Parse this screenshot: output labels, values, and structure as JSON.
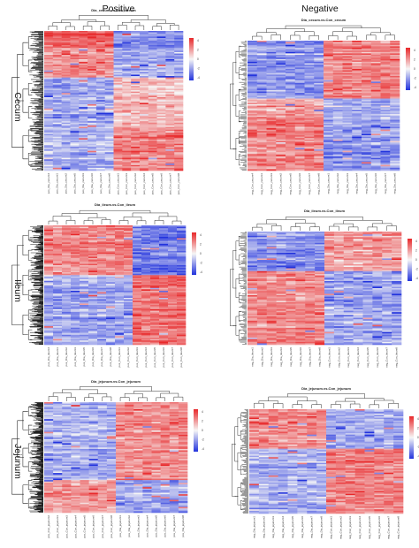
{
  "headers": {
    "columns": [
      "Positive",
      "Negative"
    ],
    "rows": [
      "Cecum",
      "Ileum",
      "Jejunum"
    ]
  },
  "colors": {
    "low": "#2233dd",
    "mid": "#f6f6f6",
    "high": "#e8282a",
    "tree": "#222222"
  },
  "chart_data": [
    {
      "type": "heatmap",
      "panel": "cecum-positive",
      "title": "Dia_cecum.vs.Con_cecum",
      "color_scale_ticks": [
        "4",
        "2",
        "0",
        "-2",
        "-4"
      ],
      "columns": [
        "pos_Dia_cecum4",
        "pos_Dia_cecum1",
        "pos_Dia_cecum2",
        "pos_Dia_cecum5",
        "pos_Dia_cecum3",
        "pos_Dia_cecum6",
        "pos_Dia_cecum7",
        "pos_Dia_cecum8",
        "pos_Con_cecum1",
        "pos_Con_cecum3",
        "pos_Con_cecum2",
        "pos_Con_cecum4",
        "pos_Con_cecum5",
        "pos_Con_cecum6",
        "pos_Con_cecum7",
        "pos_Con_cecum8"
      ],
      "row_clusters": 220,
      "blocks": [
        {
          "rows": [
            0.0,
            0.12
          ],
          "cols": [
            0,
            7
          ],
          "value": 1.6
        },
        {
          "rows": [
            0.0,
            0.12
          ],
          "cols": [
            8,
            15
          ],
          "value": -1.2
        },
        {
          "rows": [
            0.12,
            0.33
          ],
          "cols": [
            0,
            7
          ],
          "value": 1.1
        },
        {
          "rows": [
            0.12,
            0.33
          ],
          "cols": [
            8,
            15
          ],
          "value": -0.8
        },
        {
          "rows": [
            0.33,
            0.7
          ],
          "cols": [
            0,
            7
          ],
          "value": -0.9
        },
        {
          "rows": [
            0.33,
            0.7
          ],
          "cols": [
            8,
            15
          ],
          "value": 0.6
        },
        {
          "rows": [
            0.7,
            1.0
          ],
          "cols": [
            0,
            7
          ],
          "value": -0.7
        },
        {
          "rows": [
            0.7,
            1.0
          ],
          "cols": [
            8,
            15
          ],
          "value": 1.3
        }
      ]
    },
    {
      "type": "heatmap",
      "panel": "cecum-negative",
      "title": "Dia_cecum.vs.Con_cecum",
      "color_scale_ticks": [
        "4",
        "2",
        "0",
        "-2",
        "-4"
      ],
      "columns": [
        "neg_Con_cecum4",
        "neg_Con_cecum1",
        "neg_Con_cecum3",
        "neg_Con_cecum2",
        "neg_Con_cecum5",
        "neg_Con_cecum6",
        "neg_Con_cecum7",
        "neg_Con_cecum8",
        "neg_Dia_cecum1",
        "neg_Dia_cecum2",
        "neg_Dia_cecum3",
        "neg_Dia_cecum4",
        "neg_Dia_cecum5",
        "neg_Dia_cecum6",
        "neg_Dia_cecum7",
        "neg_Dia_cecum8"
      ],
      "row_clusters": 120,
      "blocks": [
        {
          "rows": [
            0.0,
            0.45
          ],
          "cols": [
            0,
            7
          ],
          "value": -1.1
        },
        {
          "rows": [
            0.0,
            0.45
          ],
          "cols": [
            8,
            15
          ],
          "value": 1.2
        },
        {
          "rows": [
            0.45,
            0.6
          ],
          "cols": [
            0,
            7
          ],
          "value": 0.9
        },
        {
          "rows": [
            0.45,
            0.6
          ],
          "cols": [
            8,
            15
          ],
          "value": -0.8
        },
        {
          "rows": [
            0.6,
            1.0
          ],
          "cols": [
            0,
            7
          ],
          "value": 1.3
        },
        {
          "rows": [
            0.6,
            1.0
          ],
          "cols": [
            8,
            15
          ],
          "value": -1.0
        }
      ]
    },
    {
      "type": "heatmap",
      "panel": "ileum-positive",
      "title": "Dia_ileum.vs.Con_ileum",
      "color_scale_ticks": [
        "4",
        "2",
        "0",
        "-2",
        "-4"
      ],
      "columns": [
        "pos_Dia_ileum4",
        "pos_Dia_ileum1",
        "pos_Dia_ileum2",
        "pos_Dia_ileum3",
        "pos_Dia_ileum5",
        "pos_Dia_ileum6",
        "pos_Dia_ileum7",
        "pos_Dia_ileum8",
        "pos_Con_ileum1",
        "pos_Con_ileum2",
        "pos_Con_ileum3",
        "pos_Con_ileum4",
        "pos_Con_ileum5",
        "pos_Con_ileum6",
        "pos_Con_ileum7",
        "pos_Con_ileum8"
      ],
      "row_clusters": 220,
      "blocks": [
        {
          "rows": [
            0.0,
            0.42
          ],
          "cols": [
            0,
            9
          ],
          "value": 1.2
        },
        {
          "rows": [
            0.0,
            0.42
          ],
          "cols": [
            10,
            15
          ],
          "value": -1.4
        },
        {
          "rows": [
            0.42,
            1.0
          ],
          "cols": [
            0,
            9
          ],
          "value": -0.9
        },
        {
          "rows": [
            0.42,
            1.0
          ],
          "cols": [
            10,
            15
          ],
          "value": 1.4
        }
      ]
    },
    {
      "type": "heatmap",
      "panel": "ileum-negative",
      "title": "Dia_ileum.vs.Con_ileum",
      "color_scale_ticks": [
        "4",
        "2",
        "0",
        "-2",
        "-4"
      ],
      "columns": [
        "neg_Dia_ileum1",
        "neg_Dia_ileum2",
        "neg_Dia_ileum3",
        "neg_Dia_ileum4",
        "neg_Dia_ileum5",
        "neg_Dia_ileum6",
        "neg_Dia_ileum7",
        "neg_Dia_ileum8",
        "neg_Con_ileum1",
        "neg_Con_ileum2",
        "neg_Con_ileum3",
        "neg_Con_ileum4",
        "neg_Con_ileum5",
        "neg_Con_ileum6",
        "neg_Con_ileum7",
        "neg_Con_ileum8"
      ],
      "row_clusters": 110,
      "blocks": [
        {
          "rows": [
            0.0,
            0.35
          ],
          "cols": [
            0,
            7
          ],
          "value": -1.1
        },
        {
          "rows": [
            0.0,
            0.35
          ],
          "cols": [
            8,
            15
          ],
          "value": 1.0
        },
        {
          "rows": [
            0.35,
            1.0
          ],
          "cols": [
            0,
            7
          ],
          "value": 1.2
        },
        {
          "rows": [
            0.35,
            1.0
          ],
          "cols": [
            8,
            15
          ],
          "value": -0.9
        }
      ]
    },
    {
      "type": "heatmap",
      "panel": "jejunum-positive",
      "title": "Dia_jejunum.vs.Con_jejunum",
      "color_scale_ticks": [
        "4",
        "2",
        "0",
        "-2",
        "-4"
      ],
      "columns": [
        "pos_Con_jejunum2",
        "pos_Con_jejunum1",
        "pos_Con_jejunum3",
        "pos_Con_jejunum4",
        "pos_Con_jejunum5",
        "pos_Con_jejunum6",
        "pos_Con_jejunum7",
        "pos_Con_jejunum8",
        "pos_Dia_jejunum1",
        "pos_Dia_jejunum2",
        "pos_Dia_jejunum3",
        "pos_Dia_jejunum4",
        "pos_Dia_jejunum5",
        "pos_Dia_jejunum6",
        "pos_Dia_jejunum7",
        "pos_Dia_jejunum8"
      ],
      "row_clusters": 220,
      "blocks": [
        {
          "rows": [
            0.0,
            0.7
          ],
          "cols": [
            0,
            7
          ],
          "value": -0.8
        },
        {
          "rows": [
            0.0,
            0.7
          ],
          "cols": [
            8,
            15
          ],
          "value": 1.1
        },
        {
          "rows": [
            0.7,
            1.0
          ],
          "cols": [
            0,
            7
          ],
          "value": 1.0
        },
        {
          "rows": [
            0.7,
            1.0
          ],
          "cols": [
            8,
            15
          ],
          "value": -0.9
        }
      ]
    },
    {
      "type": "heatmap",
      "panel": "jejunum-negative",
      "title": "Dia_jejunum.vs.Con_jejunum",
      "color_scale_ticks": [
        "4",
        "2",
        "0",
        "-2",
        "-4"
      ],
      "columns": [
        "neg_Dia_jejunum1",
        "neg_Dia_jejunum2",
        "neg_Dia_jejunum3",
        "neg_Dia_jejunum4",
        "neg_Dia_jejunum5",
        "neg_Dia_jejunum6",
        "neg_Dia_jejunum7",
        "neg_Dia_jejunum8",
        "neg_Con_jejunum1",
        "neg_Con_jejunum2",
        "neg_Con_jejunum3",
        "neg_Con_jejunum4",
        "neg_Con_jejunum5",
        "neg_Con_jejunum6",
        "neg_Con_jejunum7",
        "neg_Con_jejunum8"
      ],
      "row_clusters": 120,
      "blocks": [
        {
          "rows": [
            0.0,
            0.38
          ],
          "cols": [
            0,
            7
          ],
          "value": 1.1
        },
        {
          "rows": [
            0.0,
            0.38
          ],
          "cols": [
            8,
            15
          ],
          "value": -0.9
        },
        {
          "rows": [
            0.38,
            1.0
          ],
          "cols": [
            0,
            7
          ],
          "value": -0.8
        },
        {
          "rows": [
            0.38,
            1.0
          ],
          "cols": [
            8,
            15
          ],
          "value": 1.2
        }
      ]
    }
  ]
}
